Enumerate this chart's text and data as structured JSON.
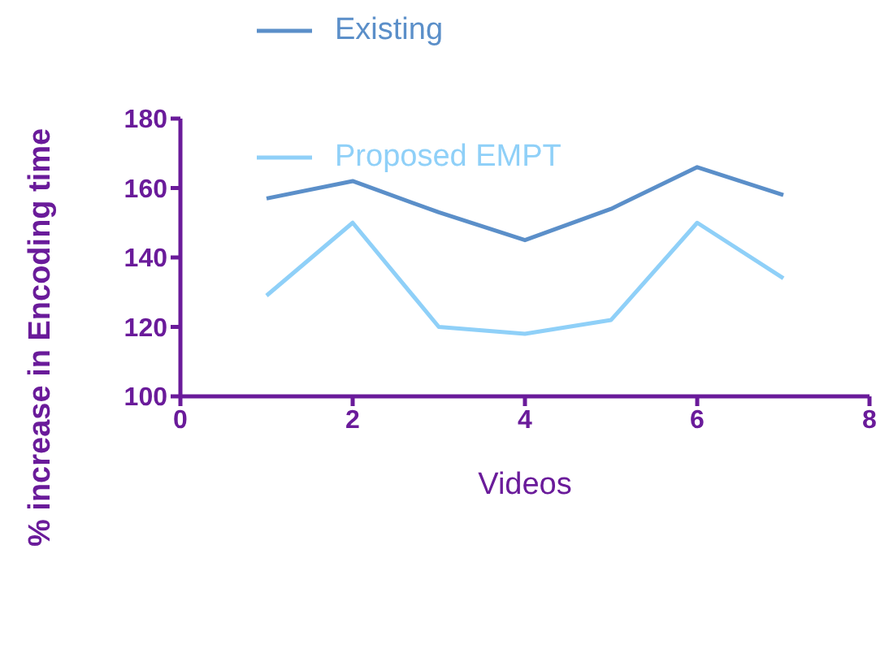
{
  "chart_data": {
    "type": "line",
    "xlabel": "Videos",
    "ylabel": "% increase in Encoding time",
    "x": [
      1,
      2,
      3,
      4,
      5,
      6,
      7
    ],
    "series": [
      {
        "name": "Existing",
        "color": "#5b8fc9",
        "values": [
          157,
          162,
          153,
          145,
          154,
          166,
          158
        ]
      },
      {
        "name": "Proposed EMPT",
        "color": "#8fd0f8",
        "values": [
          129,
          150,
          120,
          118,
          122,
          150,
          134
        ]
      }
    ],
    "xlim": [
      0,
      8
    ],
    "xticks": [
      0,
      2,
      4,
      6,
      8
    ],
    "ylim": [
      100,
      180
    ],
    "yticks": [
      100,
      120,
      140,
      160,
      180
    ],
    "grid": false,
    "legend": "top",
    "marker": "none",
    "line_style": "solid"
  }
}
